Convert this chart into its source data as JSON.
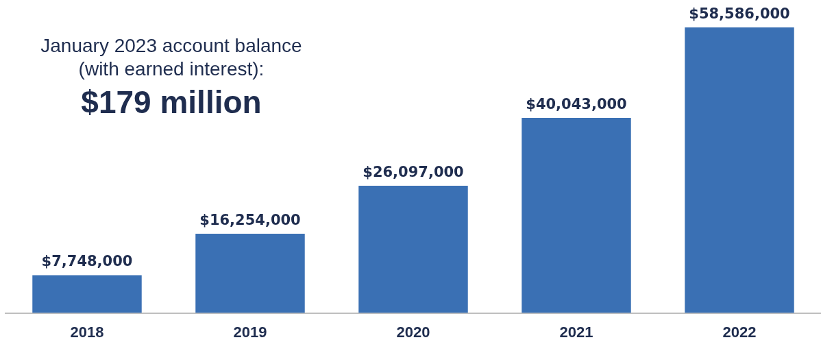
{
  "chart_data": {
    "type": "bar",
    "categories": [
      "2018",
      "2019",
      "2020",
      "2021",
      "2022"
    ],
    "values": [
      7748000,
      16254000,
      26097000,
      40043000,
      58586000
    ],
    "value_labels": [
      "$7,748,000",
      "$16,254,000",
      "$26,097,000",
      "$40,043,000",
      "$58,586,000"
    ],
    "color": "#3a70b4",
    "legend": false,
    "annotations": [
      "January 2023 account balance\n(with earned interest):",
      "$179 million"
    ]
  }
}
